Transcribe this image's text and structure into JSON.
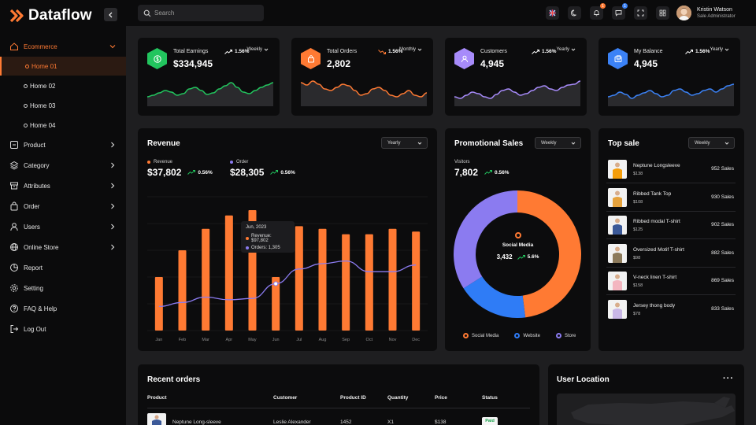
{
  "brand": {
    "name": "Dataflow"
  },
  "sidebar": {
    "group": "Ecommerce",
    "sub_items": [
      {
        "label": "Home 01",
        "active": true
      },
      {
        "label": "Home 02"
      },
      {
        "label": "Home 03"
      },
      {
        "label": "Home 04"
      }
    ],
    "items": [
      {
        "label": "Product",
        "icon": "box-icon",
        "chevron": true
      },
      {
        "label": "Category",
        "icon": "layers-icon",
        "chevron": true
      },
      {
        "label": "Attributes",
        "icon": "archive-icon",
        "chevron": true
      },
      {
        "label": "Order",
        "icon": "bag-icon",
        "chevron": true
      },
      {
        "label": "Users",
        "icon": "user-icon",
        "chevron": true
      },
      {
        "label": "Online Store",
        "icon": "globe-icon",
        "chevron": true
      },
      {
        "label": "Report",
        "icon": "report-icon"
      },
      {
        "label": "Setting",
        "icon": "gear-icon"
      },
      {
        "label": "FAQ & Help",
        "icon": "help-icon"
      },
      {
        "label": "Log Out",
        "icon": "logout-icon"
      }
    ]
  },
  "topbar": {
    "search_placeholder": "Search",
    "notifications_count": "1",
    "messages_count": "1",
    "user_name": "Kristin Watson",
    "user_role": "Sale Administrator"
  },
  "stats": [
    {
      "title": "Total Earnings",
      "value": "$334,945",
      "pct": "1.56%",
      "trend": "up",
      "period": "Weekly",
      "color": "#22c55e",
      "icon": "dollar-icon",
      "spark": [
        30,
        28,
        25,
        22,
        24,
        28,
        26,
        20,
        18,
        22,
        27,
        25,
        20,
        16,
        12,
        18,
        24,
        26,
        22,
        18,
        15,
        12
      ]
    },
    {
      "title": "Total Orders",
      "value": "2,802",
      "pct": "1.56%",
      "trend": "down",
      "period": "Monthly",
      "color": "#ff7a33",
      "icon": "bag-icon",
      "spark": [
        12,
        15,
        10,
        14,
        20,
        22,
        18,
        14,
        16,
        22,
        28,
        26,
        20,
        18,
        22,
        28,
        30,
        26,
        22,
        28,
        30,
        25
      ]
    },
    {
      "title": "Customers",
      "value": "4,945",
      "pct": "1.56%",
      "trend": "up",
      "period": "Yearly",
      "color": "#a78bfa",
      "icon": "user-icon",
      "spark": [
        30,
        32,
        28,
        24,
        26,
        30,
        32,
        27,
        22,
        20,
        24,
        28,
        26,
        22,
        18,
        16,
        20,
        22,
        18,
        15,
        14,
        10
      ]
    },
    {
      "title": "My Balance",
      "value": "4,945",
      "pct": "1.56%",
      "trend": "up",
      "period": "Yearly",
      "color": "#3b82f6",
      "icon": "wallet-icon",
      "spark": [
        30,
        28,
        24,
        27,
        32,
        28,
        25,
        22,
        26,
        30,
        28,
        22,
        20,
        24,
        28,
        26,
        22,
        20,
        24,
        20,
        16,
        14
      ]
    }
  ],
  "revenue": {
    "title": "Revenue",
    "period": "Yearly",
    "revenue_label": "Revenue",
    "revenue_value": "$37,802",
    "revenue_pct": "0.56%",
    "order_label": "Order",
    "order_value": "$28,305",
    "order_pct": "0.56%",
    "tooltip": {
      "date": "Jun, 2023",
      "revenue": "Revenue: $97,802",
      "orders": "Orders: 1,305"
    }
  },
  "chart_data": {
    "type": "bar",
    "categories": [
      "Jan",
      "Feb",
      "Mar",
      "Apr",
      "May",
      "Jun",
      "Jul",
      "Aug",
      "Sep",
      "Oct",
      "Nov",
      "Dec"
    ],
    "ylim": [
      0,
      100
    ],
    "series": [
      {
        "name": "Revenue",
        "type": "bar",
        "color": "#ff7a33",
        "values": [
          40,
          60,
          76,
          86,
          90,
          40,
          78,
          76,
          72,
          72,
          76,
          74
        ]
      },
      {
        "name": "Order",
        "type": "line",
        "color": "#8b7bf0",
        "values": [
          18,
          21,
          25,
          23,
          24,
          35,
          46,
          50,
          52,
          44,
          44,
          49
        ]
      }
    ],
    "grid": true
  },
  "promo": {
    "title": "Promotional Sales",
    "period": "Weekly",
    "visitors_label": "Visitors",
    "visitors_value": "7,802",
    "visitors_pct": "0.56%",
    "center_label": "Social Media",
    "center_value": "3,432",
    "center_pct": "5.6%",
    "donut": [
      {
        "name": "Social Media",
        "value": 48,
        "color": "#ff7a33"
      },
      {
        "name": "Website",
        "value": 18,
        "color": "#2f7cf6"
      },
      {
        "name": "Store",
        "value": 34,
        "color": "#8b7bf0"
      }
    ]
  },
  "top_sale": {
    "title": "Top sale",
    "period": "Weekly",
    "items": [
      {
        "name": "Neptune Longsleeve",
        "price": "$138",
        "sales": "952 Sales",
        "color": "#f59e0b"
      },
      {
        "name": "Ribbed Tank Top",
        "price": "$108",
        "sales": "930 Sales",
        "color": "#e6a23c"
      },
      {
        "name": "Ribbed modal T-shirt",
        "price": "$125",
        "sales": "902 Sales",
        "color": "#3b5998"
      },
      {
        "name": "Oversized Motif T-shirt",
        "price": "$98",
        "sales": "882 Sales",
        "color": "#8c7a5b"
      },
      {
        "name": "V-neck linen T-shirt",
        "price": "$158",
        "sales": "869 Sales",
        "color": "#f3b6c0"
      },
      {
        "name": "Jersey thong body",
        "price": "$78",
        "sales": "833 Sales",
        "color": "#c9b7e6"
      }
    ]
  },
  "orders": {
    "title": "Recent orders",
    "columns": [
      "Product",
      "Customer",
      "Product ID",
      "Quantity",
      "Price",
      "Status"
    ],
    "rows": [
      {
        "product": "Neptune Long-sleeve",
        "customer": "Leslie Alexander",
        "id": "1452",
        "qty": "X1",
        "price": "$138",
        "status": "Paid"
      }
    ]
  },
  "location": {
    "title": "User Location"
  }
}
